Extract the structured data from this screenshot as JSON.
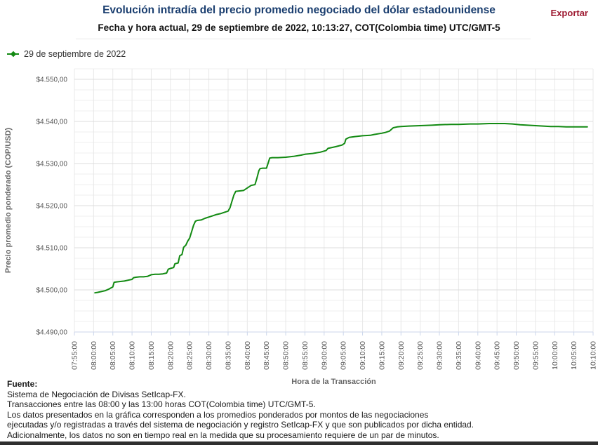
{
  "header": {
    "title": "Evolución intradía del precio promedio negociado del dólar estadounidense",
    "subtitle": "Fecha y hora actual, 29 de septiembre de 2022, 10:13:27, COT(Colombia time) UTC/GMT-5",
    "export_label": "Exportar"
  },
  "colors": {
    "title_blue": "#1a3e6f",
    "export_red": "#9e1b32",
    "line_green": "#128a12",
    "grid_major": "#dcdcdc",
    "grid_minor": "#efefef",
    "grid_vertical": "#e8e8e8",
    "axis_line": "#ccd6eb",
    "tick_label": "#555555",
    "axis_title": "#666666"
  },
  "footer": {
    "source_label": "Fuente:",
    "lines": [
      "Sistema de Negociación de Divisas SetIcap-FX.",
      "Transacciones entre las 08:00 y las 13:00 horas COT(Colombia time) UTC/GMT-5.",
      "Los datos presentados en la gráfica corresponden a los promedios ponderados por montos de las negociaciones",
      "ejecutadas y/o registradas a través del sistema de negociación y registro SetIcap-FX y que son publicados por dicha entidad.",
      "Adicionalmente, los datos no son en tiempo real en la medida que su procesamiento requiere de un par de minutos."
    ]
  },
  "chart_data": {
    "type": "line",
    "title": "Evolución intradía del precio promedio negociado del dólar estadounidense",
    "legend": "29 de septiembre de 2022",
    "legend_position": "top-left",
    "xlabel": "Hora de la Transacción",
    "ylabel": "Precio promedio ponderado (COP/USD)",
    "grid": true,
    "x_ticks": [
      "07:55:00",
      "08:00:00",
      "08:05:00",
      "08:10:00",
      "08:15:00",
      "08:20:00",
      "08:25:00",
      "08:30:00",
      "08:35:00",
      "08:40:00",
      "08:45:00",
      "08:50:00",
      "08:55:00",
      "09:00:00",
      "09:05:00",
      "09:10:00",
      "09:15:00",
      "09:20:00",
      "09:25:00",
      "09:30:00",
      "09:35:00",
      "09:40:00",
      "09:45:00",
      "09:50:00",
      "09:55:00",
      "10:00:00",
      "10:05:00",
      "10:10:00"
    ],
    "y_tick_labels": [
      "$4.550,00",
      "$4.540,00",
      "$4.530,00",
      "$4.520,00",
      "$4.510,00",
      "$4.500,00",
      "$4.490,00"
    ],
    "y_tick_values": [
      4550,
      4540,
      4530,
      4520,
      4510,
      4500,
      4490
    ],
    "ylim": [
      4490,
      4552.5
    ],
    "y_minor_step": 2.5,
    "x_range_minutes": 135,
    "series": [
      {
        "name": "29 de septiembre de 2022",
        "points": [
          [
            "08:00:20",
            4499.3
          ],
          [
            "08:01:00",
            4499.4
          ],
          [
            "08:02:00",
            4499.6
          ],
          [
            "08:03:00",
            4499.8
          ],
          [
            "08:04:00",
            4500.2
          ],
          [
            "08:05:00",
            4500.7
          ],
          [
            "08:05:20",
            4501.8
          ],
          [
            "08:06:00",
            4501.9
          ],
          [
            "08:07:00",
            4502.0
          ],
          [
            "08:08:00",
            4502.1
          ],
          [
            "08:09:00",
            4502.3
          ],
          [
            "08:10:00",
            4502.5
          ],
          [
            "08:10:25",
            4502.9
          ],
          [
            "08:11:00",
            4503.0
          ],
          [
            "08:12:00",
            4503.1
          ],
          [
            "08:13:00",
            4503.1
          ],
          [
            "08:14:00",
            4503.2
          ],
          [
            "08:15:00",
            4503.6
          ],
          [
            "08:16:00",
            4503.7
          ],
          [
            "08:17:00",
            4503.7
          ],
          [
            "08:18:00",
            4503.8
          ],
          [
            "08:19:00",
            4504.0
          ],
          [
            "08:19:25",
            4504.9
          ],
          [
            "08:20:00",
            4505.1
          ],
          [
            "08:20:50",
            4505.3
          ],
          [
            "08:21:10",
            4506.2
          ],
          [
            "08:22:00",
            4506.4
          ],
          [
            "08:22:25",
            4508.1
          ],
          [
            "08:23:00",
            4508.4
          ],
          [
            "08:23:25",
            4510.1
          ],
          [
            "08:24:00",
            4510.6
          ],
          [
            "08:24:30",
            4511.6
          ],
          [
            "08:25:00",
            4512.3
          ],
          [
            "08:25:30",
            4513.8
          ],
          [
            "08:26:00",
            4515.3
          ],
          [
            "08:26:30",
            4516.3
          ],
          [
            "08:27:00",
            4516.5
          ],
          [
            "08:28:00",
            4516.6
          ],
          [
            "08:29:00",
            4517.0
          ],
          [
            "08:30:00",
            4517.3
          ],
          [
            "08:31:00",
            4517.6
          ],
          [
            "08:32:00",
            4517.9
          ],
          [
            "08:33:00",
            4518.1
          ],
          [
            "08:34:00",
            4518.4
          ],
          [
            "08:35:00",
            4518.7
          ],
          [
            "08:35:30",
            4519.5
          ],
          [
            "08:36:00",
            4521.0
          ],
          [
            "08:36:30",
            4522.5
          ],
          [
            "08:37:00",
            4523.4
          ],
          [
            "08:38:00",
            4523.5
          ],
          [
            "08:39:00",
            4523.6
          ],
          [
            "08:40:00",
            4524.2
          ],
          [
            "08:41:00",
            4524.8
          ],
          [
            "08:42:00",
            4525.0
          ],
          [
            "08:42:30",
            4526.5
          ],
          [
            "08:43:00",
            4528.3
          ],
          [
            "08:43:20",
            4528.8
          ],
          [
            "08:44:00",
            4528.9
          ],
          [
            "08:45:00",
            4528.9
          ],
          [
            "08:45:50",
            4531.3
          ],
          [
            "08:46:30",
            4531.4
          ],
          [
            "08:48:00",
            4531.4
          ],
          [
            "08:50:00",
            4531.5
          ],
          [
            "08:52:00",
            4531.7
          ],
          [
            "08:54:00",
            4532.0
          ],
          [
            "08:55:00",
            4532.2
          ],
          [
            "08:57:00",
            4532.4
          ],
          [
            "08:59:00",
            4532.7
          ],
          [
            "09:00:30",
            4533.1
          ],
          [
            "09:01:00",
            4533.6
          ],
          [
            "09:03:00",
            4534.0
          ],
          [
            "09:04:40",
            4534.4
          ],
          [
            "09:05:20",
            4534.8
          ],
          [
            "09:05:40",
            4535.8
          ],
          [
            "09:06:30",
            4536.2
          ],
          [
            "09:08:00",
            4536.4
          ],
          [
            "09:10:00",
            4536.6
          ],
          [
            "09:12:00",
            4536.7
          ],
          [
            "09:13:00",
            4536.9
          ],
          [
            "09:15:00",
            4537.2
          ],
          [
            "09:16:00",
            4537.4
          ],
          [
            "09:17:00",
            4537.7
          ],
          [
            "09:18:00",
            4538.5
          ],
          [
            "09:19:00",
            4538.7
          ],
          [
            "09:20:00",
            4538.8
          ],
          [
            "09:22:00",
            4538.9
          ],
          [
            "09:25:00",
            4539.0
          ],
          [
            "09:28:00",
            4539.1
          ],
          [
            "09:30:00",
            4539.2
          ],
          [
            "09:33:00",
            4539.3
          ],
          [
            "09:35:00",
            4539.3
          ],
          [
            "09:38:00",
            4539.4
          ],
          [
            "09:40:00",
            4539.4
          ],
          [
            "09:43:00",
            4539.5
          ],
          [
            "09:45:00",
            4539.5
          ],
          [
            "09:47:00",
            4539.5
          ],
          [
            "09:49:00",
            4539.4
          ],
          [
            "09:51:00",
            4539.2
          ],
          [
            "09:53:00",
            4539.1
          ],
          [
            "09:55:00",
            4539.0
          ],
          [
            "09:57:00",
            4538.9
          ],
          [
            "09:59:00",
            4538.8
          ],
          [
            "10:01:00",
            4538.8
          ],
          [
            "10:03:00",
            4538.7
          ],
          [
            "10:05:00",
            4538.7
          ],
          [
            "10:07:00",
            4538.7
          ],
          [
            "10:08:30",
            4538.7
          ]
        ]
      }
    ]
  }
}
